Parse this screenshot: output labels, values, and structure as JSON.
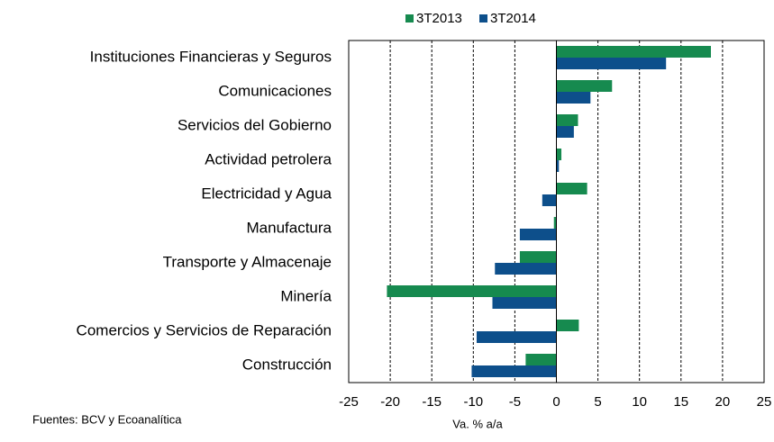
{
  "chart_data": {
    "type": "bar",
    "orientation": "horizontal",
    "categories": [
      "Instituciones Financieras y Seguros",
      "Comunicaciones",
      "Servicios del Gobierno",
      "Actividad petrolera",
      "Electricidad y Agua",
      "Manufactura",
      "Transporte y Almacenaje",
      "Minería",
      "Comercios y Servicios de Reparación",
      "Construcción"
    ],
    "series": [
      {
        "name": "3T2013",
        "color": "#168a4f",
        "values": [
          18.6,
          6.7,
          2.6,
          0.6,
          3.7,
          -0.3,
          -4.4,
          -20.4,
          2.7,
          -3.7
        ]
      },
      {
        "name": "3T2014",
        "color": "#0d4f8b",
        "values": [
          13.2,
          4.1,
          2.1,
          0.3,
          -1.7,
          -4.4,
          -7.4,
          -7.7,
          -9.6,
          -10.2
        ]
      }
    ],
    "xlim": [
      -25,
      25
    ],
    "xticks": [
      -25,
      -20,
      -15,
      -10,
      -5,
      0,
      5,
      10,
      15,
      20,
      25
    ],
    "xlabel": "Va. % a/a",
    "source": "Fuentes: BCV y Ecoanalítica",
    "grid": true,
    "legend": "top"
  }
}
